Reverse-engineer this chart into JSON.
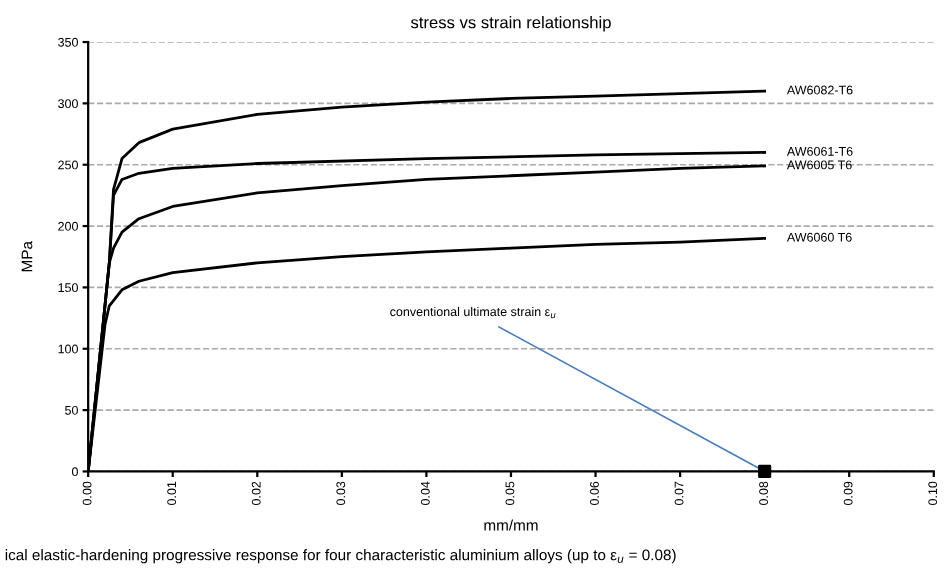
{
  "chart_data": {
    "type": "line",
    "title": "stress vs strain relationship",
    "xlabel": "mm/mm",
    "ylabel": "MPa",
    "series": [
      {
        "name": "AW6082-T6",
        "color": "#000000",
        "x": [
          0,
          0.0025,
          0.003,
          0.004,
          0.006,
          0.01,
          0.02,
          0.03,
          0.04,
          0.05,
          0.06,
          0.07,
          0.08
        ],
        "values": [
          0,
          170,
          230,
          255,
          268,
          279,
          291,
          297,
          301,
          304,
          306,
          308,
          310
        ]
      },
      {
        "name": "AW6061-T6",
        "color": "#000000",
        "x": [
          0,
          0.0025,
          0.003,
          0.004,
          0.006,
          0.01,
          0.02,
          0.04,
          0.06,
          0.08
        ],
        "values": [
          0,
          170,
          225,
          238,
          243,
          247,
          251,
          255,
          258,
          260
        ]
      },
      {
        "name": "AW6005 T6",
        "color": "#000000",
        "x": [
          0,
          0.0025,
          0.003,
          0.004,
          0.006,
          0.01,
          0.02,
          0.03,
          0.04,
          0.05,
          0.06,
          0.07,
          0.08
        ],
        "values": [
          0,
          170,
          182,
          195,
          206,
          216,
          227,
          233,
          238,
          241,
          244,
          247,
          249
        ]
      },
      {
        "name": "AW6060 T6",
        "color": "#000000",
        "x": [
          0,
          0.002,
          0.0025,
          0.004,
          0.006,
          0.01,
          0.02,
          0.03,
          0.04,
          0.05,
          0.06,
          0.07,
          0.08
        ],
        "values": [
          0,
          120,
          135,
          148,
          155,
          162,
          170,
          175,
          179,
          182,
          185,
          187,
          190
        ]
      },
      {
        "type": "scatter",
        "marker": "square",
        "color": "#000000",
        "x": [
          0.08
        ],
        "values": [
          0
        ]
      }
    ],
    "xlim": [
      0,
      0.1
    ],
    "ylim": [
      0,
      350
    ],
    "xticks": [
      {
        "value": 0,
        "label": "0.00"
      },
      {
        "value": 0.01,
        "label": "0.01"
      },
      {
        "value": 0.02,
        "label": "0.02"
      },
      {
        "value": 0.03,
        "label": "0.03"
      },
      {
        "value": 0.04,
        "label": "0.04"
      },
      {
        "value": 0.05,
        "label": "0.05"
      },
      {
        "value": 0.06,
        "label": "0.06"
      },
      {
        "value": 0.07,
        "label": "0.07"
      },
      {
        "value": 0.08,
        "label": "0.08"
      },
      {
        "value": 0.09,
        "label": "0.09"
      },
      {
        "value": 0.1,
        "label": "0.10"
      }
    ],
    "yticks": [
      0,
      50,
      100,
      150,
      200,
      250,
      300,
      350
    ],
    "grid": "y",
    "legend": false,
    "annotations": [
      {
        "text": "conventional ultimate strain ε$_{u}$",
        "x": 0.08,
        "y": 0
      },
      "ical elastic-hardening progressive response for four characteristic aluminium alloys (up to ε$_{u}$ = 0.08)"
    ]
  }
}
